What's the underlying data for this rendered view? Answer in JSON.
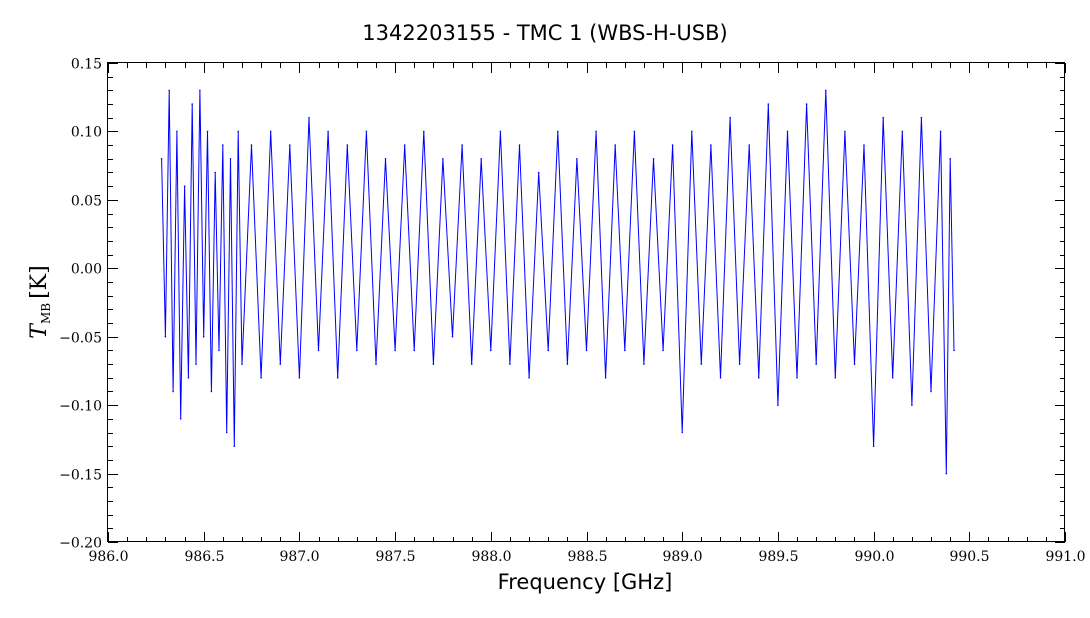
{
  "chart_data": {
    "type": "line",
    "title": "1342203155 - TMC 1 (WBS-H-USB)",
    "xlabel": "Frequency [GHz]",
    "ylabel": "T",
    "ylabel_sub": "MB",
    "ylabel_unit": "[K]",
    "xlim": [
      986.0,
      991.0
    ],
    "ylim": [
      -0.2,
      0.15
    ],
    "x_ticks": [
      986.0,
      986.5,
      987.0,
      987.5,
      988.0,
      988.5,
      989.0,
      989.5,
      990.0,
      990.5,
      991.0
    ],
    "x_tick_labels": [
      "986.0",
      "986.5",
      "987.0",
      "987.5",
      "988.0",
      "988.5",
      "989.0",
      "989.5",
      "990.0",
      "990.5",
      "991.0"
    ],
    "y_ticks": [
      -0.2,
      -0.15,
      -0.1,
      -0.05,
      0.0,
      0.05,
      0.1,
      0.15
    ],
    "y_tick_labels": [
      "−0.20",
      "−0.15",
      "−0.10",
      "−0.05",
      "0.00",
      "0.05",
      "0.10",
      "0.15"
    ],
    "grid": false,
    "legend": "none",
    "series": [
      {
        "color": "#0000ff",
        "x": [
          986.28,
          986.3,
          986.32,
          986.34,
          986.36,
          986.38,
          986.4,
          986.42,
          986.44,
          986.46,
          986.48,
          986.5,
          986.52,
          986.54,
          986.56,
          986.58,
          986.6,
          986.62,
          986.64,
          986.66,
          986.68,
          986.7,
          986.75,
          986.8,
          986.85,
          986.9,
          986.95,
          987.0,
          987.05,
          987.1,
          987.15,
          987.2,
          987.25,
          987.3,
          987.35,
          987.4,
          987.45,
          987.5,
          987.55,
          987.6,
          987.65,
          987.7,
          987.75,
          987.8,
          987.85,
          987.9,
          987.95,
          988.0,
          988.05,
          988.1,
          988.15,
          988.2,
          988.25,
          988.3,
          988.35,
          988.4,
          988.45,
          988.5,
          988.55,
          988.6,
          988.65,
          988.7,
          988.75,
          988.8,
          988.85,
          988.9,
          988.95,
          989.0,
          989.05,
          989.1,
          989.15,
          989.2,
          989.25,
          989.3,
          989.35,
          989.4,
          989.45,
          989.5,
          989.55,
          989.6,
          989.65,
          989.7,
          989.75,
          989.8,
          989.85,
          989.9,
          989.95,
          990.0,
          990.05,
          990.1,
          990.15,
          990.2,
          990.25,
          990.3,
          990.35,
          990.38,
          990.4,
          990.42
        ],
        "y": [
          0.08,
          -0.05,
          0.13,
          -0.09,
          0.1,
          -0.11,
          0.06,
          -0.08,
          0.12,
          -0.07,
          0.13,
          -0.05,
          0.1,
          -0.09,
          0.07,
          -0.06,
          0.09,
          -0.12,
          0.08,
          -0.13,
          0.1,
          -0.07,
          0.09,
          -0.08,
          0.1,
          -0.07,
          0.09,
          -0.08,
          0.11,
          -0.06,
          0.1,
          -0.08,
          0.09,
          -0.06,
          0.1,
          -0.07,
          0.08,
          -0.06,
          0.09,
          -0.06,
          0.1,
          -0.07,
          0.08,
          -0.05,
          0.09,
          -0.07,
          0.08,
          -0.06,
          0.1,
          -0.07,
          0.09,
          -0.08,
          0.07,
          -0.06,
          0.1,
          -0.07,
          0.08,
          -0.06,
          0.1,
          -0.08,
          0.09,
          -0.06,
          0.1,
          -0.07,
          0.08,
          -0.06,
          0.09,
          -0.12,
          0.1,
          -0.07,
          0.09,
          -0.08,
          0.11,
          -0.07,
          0.09,
          -0.08,
          0.12,
          -0.1,
          0.1,
          -0.08,
          0.12,
          -0.07,
          0.13,
          -0.08,
          0.1,
          -0.07,
          0.09,
          -0.13,
          0.11,
          -0.08,
          0.1,
          -0.1,
          0.11,
          -0.09,
          0.1,
          -0.15,
          0.08,
          -0.06
        ]
      }
    ]
  }
}
